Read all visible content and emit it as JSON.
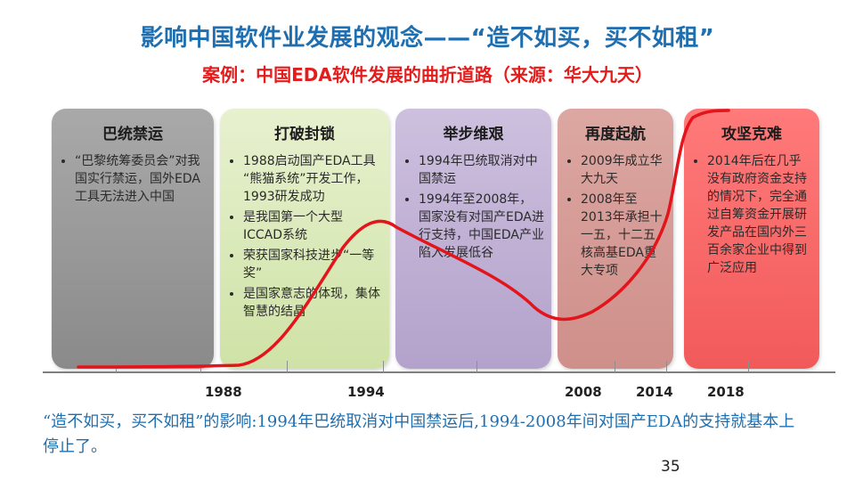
{
  "title": "影响中国软件业发展的观念——“造不如买，买不如租”",
  "subtitle": "案例：中国EDA软件发展的曲折道路（来源：华大九天）",
  "stages": [
    {
      "heading": "巴统禁运",
      "bullets": [
        "“巴黎统筹委员会”对我国实行禁运，国外EDA工具无法进入中国"
      ]
    },
    {
      "heading": "打破封锁",
      "bullets": [
        "1988启动国产EDA工具 “熊猫系统”开发工作，1993研发成功",
        "是我国第一个大型ICCAD系统",
        "荣获国家科技进步“一等奖”",
        "是国家意志的体现，集体智慧的结晶"
      ]
    },
    {
      "heading": "举步维艰",
      "bullets": [
        "1994年巴统取消对中国禁运",
        "1994年至2008年，国家没有对国产EDA进行支持，中国EDA产业陷入发展低谷"
      ]
    },
    {
      "heading": "再度起航",
      "bullets": [
        "2009年成立华大九天",
        "2008年至2013年承担十一五，十二五核高基EDA重大专项"
      ]
    },
    {
      "heading": "攻坚克难",
      "bullets": [
        "2014年后在几乎没有政府资金支持的情况下，完全通过自筹资金开展研发产品在国内外三百余家企业中得到广泛应用"
      ]
    }
  ],
  "years": [
    "1988",
    "1994",
    "2008",
    "2014",
    "2018"
  ],
  "footnote": "“造不如买，买不如租”的影响:1994年巴统取消对中国禁运后,1994-2008年间对国产EDA的支持就基本上停止了。",
  "page_number": "35",
  "colors": {
    "title": "#1f6fb0",
    "subtitle": "#e41c1c",
    "curve": "#e3141b",
    "footnote": "#1f6fb0"
  }
}
